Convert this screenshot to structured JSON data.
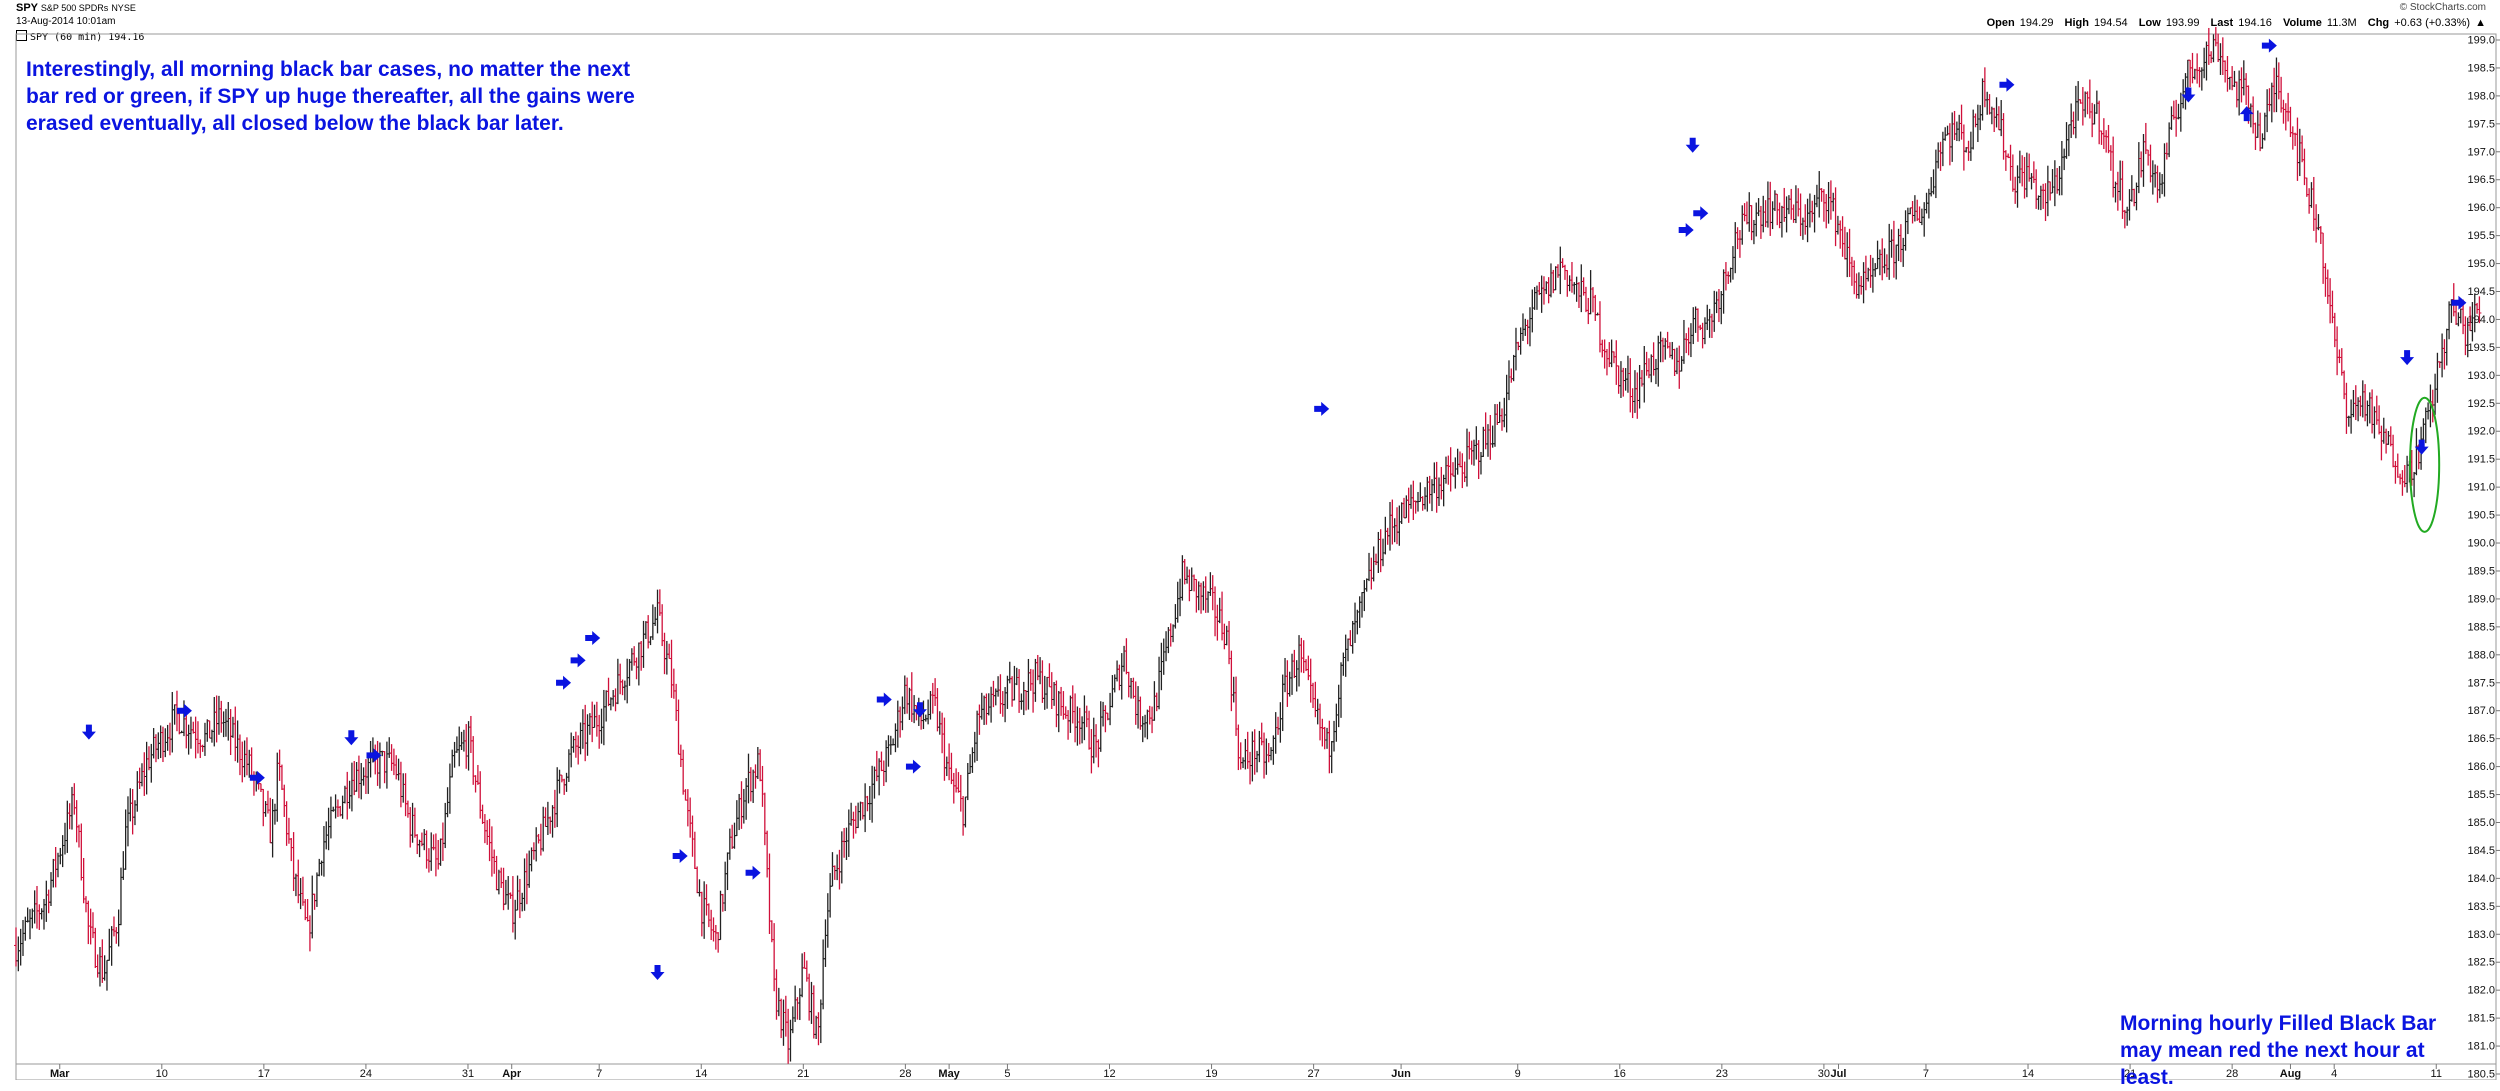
{
  "header": {
    "symbol": "SPY",
    "name": "S&P 500 SPDRs",
    "exchange": "NYSE",
    "date": "13-Aug-2014 10:01am",
    "legend": "SPY (60 min) 194.16",
    "brand": "© StockCharts.com",
    "quote": {
      "open_label": "Open",
      "open": "194.29",
      "high_label": "High",
      "high": "194.54",
      "low_label": "Low",
      "low": "193.99",
      "last_label": "Last",
      "last": "194.16",
      "volume_label": "Volume",
      "volume": "11.3M",
      "chg_label": "Chg",
      "chg": "+0.63 (+0.33%)",
      "chg_arrow": "▲"
    }
  },
  "annotations": {
    "note1": "Interestingly, all morning black bar cases, no matter the next bar red or green, if SPY up huge thereafter, all the gains were erased eventually, all closed below the black bar later.",
    "note2": "Morning hourly Filled Black Bar may mean red the next hour at least."
  },
  "colors": {
    "up": "#222222",
    "down": "#d0103a",
    "arrow": "#0a14e0",
    "circle": "#22aa22",
    "note": "#0a14e0"
  },
  "chart_data": {
    "type": "bar",
    "title": "SPY (60 min)",
    "ylim": [
      180.5,
      199.0
    ],
    "y_ticks": [
      "180.5",
      "181.0",
      "181.5",
      "182.0",
      "182.5",
      "183.0",
      "183.5",
      "184.0",
      "184.5",
      "185.0",
      "185.5",
      "186.0",
      "186.5",
      "187.0",
      "187.5",
      "188.0",
      "188.5",
      "189.0",
      "189.5",
      "190.0",
      "190.5",
      "191.0",
      "191.5",
      "192.0",
      "192.5",
      "193.0",
      "193.5",
      "194.0",
      "194.5",
      "195.0",
      "195.5",
      "196.0",
      "196.5",
      "197.0",
      "197.5",
      "198.0",
      "198.5",
      "199.0"
    ],
    "x_ticks": [
      {
        "label": "Mar",
        "day": 0,
        "bold": true
      },
      {
        "label": "10",
        "day": 7
      },
      {
        "label": "17",
        "day": 14
      },
      {
        "label": "24",
        "day": 21
      },
      {
        "label": "31",
        "day": 28
      },
      {
        "label": "Apr",
        "day": 31,
        "bold": true
      },
      {
        "label": "7",
        "day": 37
      },
      {
        "label": "14",
        "day": 44
      },
      {
        "label": "21",
        "day": 51
      },
      {
        "label": "28",
        "day": 58
      },
      {
        "label": "May",
        "day": 61,
        "bold": true
      },
      {
        "label": "5",
        "day": 65
      },
      {
        "label": "12",
        "day": 72
      },
      {
        "label": "19",
        "day": 79
      },
      {
        "label": "27",
        "day": 86
      },
      {
        "label": "Jun",
        "day": 92,
        "bold": true
      },
      {
        "label": "9",
        "day": 100
      },
      {
        "label": "16",
        "day": 107
      },
      {
        "label": "23",
        "day": 114
      },
      {
        "label": "30",
        "day": 121
      },
      {
        "label": "Jul",
        "day": 122,
        "bold": true
      },
      {
        "label": "7",
        "day": 128
      },
      {
        "label": "14",
        "day": 135
      },
      {
        "label": "21",
        "day": 142
      },
      {
        "label": "28",
        "day": 149
      },
      {
        "label": "Aug",
        "day": 153,
        "bold": true
      },
      {
        "label": "4",
        "day": 156
      },
      {
        "label": "11",
        "day": 163
      }
    ],
    "x_range_days": [
      -3,
      166
    ],
    "close_path": [
      [
        -3,
        182.8
      ],
      [
        -1,
        183.6
      ],
      [
        1,
        185.4
      ],
      [
        2,
        183.0
      ],
      [
        3,
        182.3
      ],
      [
        4,
        183.3
      ],
      [
        4.5,
        184.8
      ],
      [
        6,
        186.1
      ],
      [
        8,
        186.9
      ],
      [
        10,
        186.5
      ],
      [
        11,
        186.9
      ],
      [
        13,
        186.0
      ],
      [
        14.5,
        184.8
      ],
      [
        15,
        186.0
      ],
      [
        16,
        184.1
      ],
      [
        17,
        183.0
      ],
      [
        18,
        184.6
      ],
      [
        19,
        185.2
      ],
      [
        20,
        185.8
      ],
      [
        22,
        186.1
      ],
      [
        23,
        186.0
      ],
      [
        24,
        185.0
      ],
      [
        26,
        184.2
      ],
      [
        27,
        186.1
      ],
      [
        28,
        186.5
      ],
      [
        29,
        185.1
      ],
      [
        30,
        184.0
      ],
      [
        31,
        183.4
      ],
      [
        33,
        184.7
      ],
      [
        35,
        186.2
      ],
      [
        37,
        186.9
      ],
      [
        39,
        187.8
      ],
      [
        41,
        188.7
      ],
      [
        42,
        187.5
      ],
      [
        43,
        185.2
      ],
      [
        44,
        183.5
      ],
      [
        45,
        182.9
      ],
      [
        46,
        184.6
      ],
      [
        47,
        185.6
      ],
      [
        48,
        186.1
      ],
      [
        49,
        182.0
      ],
      [
        50,
        181.0
      ],
      [
        51,
        182.4
      ],
      [
        52,
        181.1
      ],
      [
        52.5,
        183.2
      ],
      [
        53,
        184.0
      ],
      [
        54,
        184.8
      ],
      [
        56,
        185.8
      ],
      [
        57,
        186.3
      ],
      [
        58,
        187.4
      ],
      [
        59,
        186.8
      ],
      [
        60,
        187.1
      ],
      [
        61,
        185.8
      ],
      [
        62,
        185.2
      ],
      [
        63,
        186.9
      ],
      [
        65,
        187.3
      ],
      [
        67,
        187.6
      ],
      [
        69,
        187.0
      ],
      [
        70,
        186.9
      ],
      [
        71,
        186.3
      ],
      [
        72,
        187.1
      ],
      [
        73,
        188.0
      ],
      [
        74,
        186.9
      ],
      [
        75,
        187.0
      ],
      [
        76,
        188.2
      ],
      [
        77,
        189.4
      ],
      [
        79,
        188.9
      ],
      [
        80,
        188.4
      ],
      [
        81,
        186.0
      ],
      [
        82,
        186.3
      ],
      [
        83,
        186.1
      ],
      [
        84,
        187.4
      ],
      [
        85,
        188.0
      ],
      [
        86,
        187.0
      ],
      [
        87,
        186.3
      ],
      [
        88,
        187.8
      ],
      [
        89,
        188.6
      ],
      [
        90,
        189.5
      ],
      [
        91,
        190.2
      ],
      [
        92,
        190.5
      ],
      [
        94,
        191.0
      ],
      [
        96,
        191.3
      ],
      [
        98,
        191.9
      ],
      [
        99,
        192.4
      ],
      [
        100,
        193.5
      ],
      [
        101,
        194.2
      ],
      [
        102,
        194.5
      ],
      [
        103,
        195.0
      ],
      [
        104,
        194.5
      ],
      [
        105,
        194.3
      ],
      [
        106,
        193.5
      ],
      [
        107,
        193.0
      ],
      [
        108,
        192.7
      ],
      [
        109,
        193.2
      ],
      [
        110,
        193.4
      ],
      [
        111,
        193.2
      ],
      [
        112,
        194.0
      ],
      [
        113,
        193.9
      ],
      [
        114,
        194.6
      ],
      [
        115,
        195.5
      ],
      [
        116,
        195.8
      ],
      [
        117,
        196.0
      ],
      [
        119,
        195.9
      ],
      [
        120,
        195.8
      ],
      [
        121,
        196.3
      ],
      [
        122,
        195.7
      ],
      [
        123,
        194.7
      ],
      [
        124,
        194.6
      ],
      [
        125,
        195.0
      ],
      [
        126,
        195.3
      ],
      [
        127,
        195.8
      ],
      [
        128,
        196.0
      ],
      [
        129,
        197.2
      ],
      [
        130,
        197.4
      ],
      [
        131,
        197.1
      ],
      [
        132,
        198.2
      ],
      [
        133,
        197.5
      ],
      [
        134,
        196.5
      ],
      [
        135,
        196.6
      ],
      [
        136,
        196.1
      ],
      [
        137,
        196.5
      ],
      [
        138,
        197.6
      ],
      [
        139,
        197.8
      ],
      [
        140,
        197.6
      ],
      [
        141,
        196.4
      ],
      [
        142,
        196.0
      ],
      [
        143,
        197.1
      ],
      [
        144,
        196.3
      ],
      [
        145,
        197.6
      ],
      [
        146,
        198.4
      ],
      [
        147,
        198.7
      ],
      [
        148,
        198.9
      ],
      [
        149,
        198.2
      ],
      [
        150,
        198.0
      ],
      [
        151,
        197.2
      ],
      [
        152,
        198.3
      ],
      [
        153,
        197.6
      ],
      [
        154,
        196.5
      ],
      [
        155,
        195.6
      ],
      [
        156,
        193.6
      ],
      [
        157,
        192.3
      ],
      [
        158,
        192.6
      ],
      [
        159,
        192.0
      ],
      [
        160,
        191.6
      ],
      [
        161,
        191.2
      ],
      [
        162,
        191.8
      ],
      [
        163,
        192.9
      ],
      [
        164,
        194.2
      ],
      [
        165,
        193.8
      ],
      [
        166,
        194.2
      ]
    ],
    "arrows_down": [
      [
        2,
        186.5
      ],
      [
        20,
        186.4
      ],
      [
        41,
        182.2
      ],
      [
        59,
        186.9
      ],
      [
        112,
        197.0
      ],
      [
        146,
        197.9
      ],
      [
        161,
        193.2
      ],
      [
        162,
        191.6
      ]
    ],
    "arrows_right": [
      [
        9,
        187.0
      ],
      [
        14,
        185.8
      ],
      [
        22,
        186.2
      ],
      [
        35,
        187.5
      ],
      [
        36,
        187.9
      ],
      [
        37,
        188.3
      ],
      [
        43,
        184.4
      ],
      [
        48,
        184.1
      ],
      [
        57,
        187.2
      ],
      [
        59,
        186.0
      ],
      [
        87,
        192.4
      ],
      [
        112,
        195.6
      ],
      [
        113,
        195.9
      ],
      [
        134,
        198.2
      ],
      [
        152,
        198.9
      ],
      [
        165,
        194.3
      ]
    ],
    "arrows_up": [
      [
        150,
        197.8
      ]
    ],
    "circle": {
      "day": 162.2,
      "price": 191.4,
      "rx_days": 1.0,
      "ry_price": 1.2
    }
  }
}
